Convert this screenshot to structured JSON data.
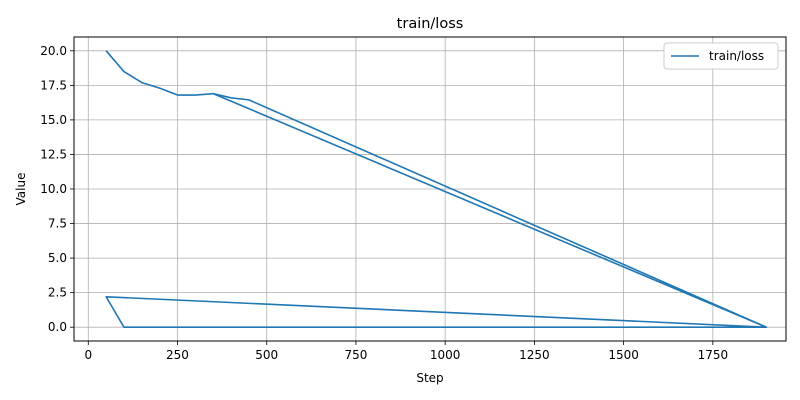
{
  "chart_data": {
    "type": "line",
    "title": "train/loss",
    "xlabel": "Step",
    "ylabel": "Value",
    "xlim": [
      -40,
      1955
    ],
    "ylim": [
      -1.0,
      21.0
    ],
    "xticks": [
      0,
      250,
      500,
      750,
      1000,
      1250,
      1500,
      1750
    ],
    "xtick_labels": [
      "0",
      "250",
      "500",
      "750",
      "1000",
      "1250",
      "1500",
      "1750"
    ],
    "yticks": [
      0.0,
      2.5,
      5.0,
      7.5,
      10.0,
      12.5,
      15.0,
      17.5,
      20.0
    ],
    "ytick_labels": [
      "0.0",
      "2.5",
      "5.0",
      "7.5",
      "10.0",
      "12.5",
      "15.0",
      "17.5",
      "20.0"
    ],
    "grid": true,
    "legend": "top-right",
    "series": [
      {
        "name": "train/loss",
        "color": "#1f77b4",
        "x": [
          50,
          100,
          150,
          200,
          250,
          300,
          350,
          400,
          450,
          1900,
          50,
          100,
          1900
        ],
        "y": [
          20.0,
          18.5,
          17.7,
          17.3,
          16.8,
          16.8,
          16.9,
          16.6,
          16.45,
          0.0,
          2.2,
          0.0,
          0.0
        ]
      },
      {
        "name": "",
        "color": "#1f77b4",
        "x": [
          350,
          1900
        ],
        "y": [
          16.9,
          0.0
        ]
      }
    ]
  }
}
